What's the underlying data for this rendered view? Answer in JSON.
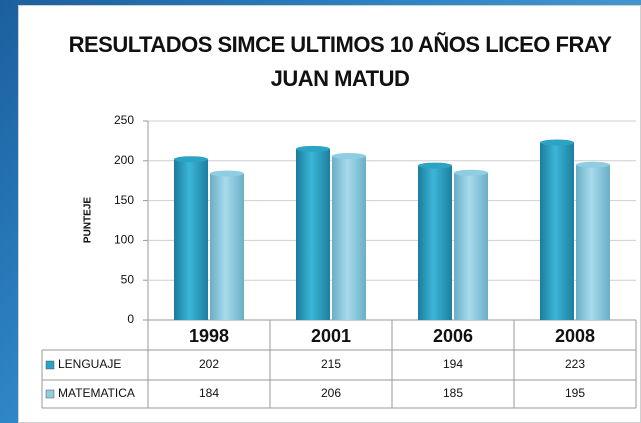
{
  "chart_data": {
    "type": "bar",
    "title": "RESULTADOS SIMCE ULTIMOS 10 AÑOS LICEO FRAY JUAN MATUD",
    "y_axis_label": "PUNTEJE",
    "categories": [
      "1998",
      "2001",
      "2006",
      "2008"
    ],
    "series": [
      {
        "name": "LENGUAJE",
        "color": "#2aa3c4",
        "values": [
          202,
          215,
          194,
          223
        ]
      },
      {
        "name": "MATEMATICA",
        "color": "#8fcde2",
        "values": [
          184,
          206,
          185,
          195
        ]
      }
    ],
    "ylim": [
      0,
      250
    ],
    "yticks": [
      0,
      50,
      100,
      150,
      200,
      250
    ],
    "grid": true,
    "data_table": true
  }
}
